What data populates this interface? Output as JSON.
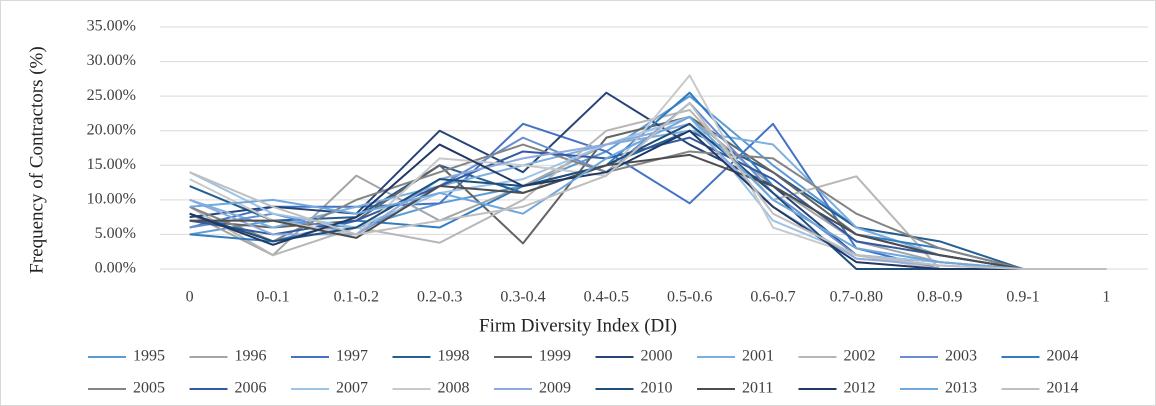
{
  "chart_data": {
    "type": "line",
    "x_label": "Firm Diversity Index (DI)",
    "y_label": "Frequency of Contractors (%)",
    "categories": [
      "0",
      "0-0.1",
      "0.1-0.2",
      "0.2-0.3",
      "0.3-0.4",
      "0.4-0.5",
      "0.5-0.6",
      "0.6-0.7",
      "0.7-0.80",
      "0.8-0.9",
      "0.9-1",
      "1"
    ],
    "ylim": [
      0,
      35
    ],
    "yticks": [
      {
        "value": 0,
        "label": "0.00%"
      },
      {
        "value": 5,
        "label": "5.00%"
      },
      {
        "value": 10,
        "label": "10.00%"
      },
      {
        "value": 15,
        "label": "15.00%"
      },
      {
        "value": 20,
        "label": "20.00%"
      },
      {
        "value": 25,
        "label": "25.00%"
      },
      {
        "value": 30,
        "label": "30.00%"
      },
      {
        "value": 35,
        "label": "35.00%"
      }
    ],
    "grid": true,
    "series": [
      {
        "name": "1995",
        "color": "#5b9bd5",
        "values": [
          5,
          7,
          6,
          9.5,
          12,
          17,
          25,
          15,
          6,
          2,
          0,
          0
        ]
      },
      {
        "name": "1996",
        "color": "#a5a5a5",
        "values": [
          8,
          2,
          13.5,
          7,
          12,
          18,
          22,
          12,
          4,
          1,
          0,
          0
        ]
      },
      {
        "name": "1997",
        "color": "#4472c4",
        "values": [
          6,
          9,
          9,
          9.5,
          21,
          17,
          9.5,
          21,
          3,
          0,
          0,
          0
        ]
      },
      {
        "name": "1998",
        "color": "#255e91",
        "values": [
          12,
          7,
          7.5,
          15,
          11,
          15,
          20,
          14,
          6,
          4,
          0,
          0
        ]
      },
      {
        "name": "1999",
        "color": "#636363",
        "values": [
          7,
          6,
          7,
          15,
          3.7,
          19,
          22,
          14,
          5,
          2,
          0,
          0
        ]
      },
      {
        "name": "2000",
        "color": "#264478",
        "values": [
          7.5,
          9,
          8,
          20,
          14,
          25.5,
          18,
          12,
          2,
          0,
          0,
          0
        ]
      },
      {
        "name": "2001",
        "color": "#7cafdd",
        "values": [
          10,
          6,
          9,
          12,
          15,
          18,
          20,
          18,
          6,
          2,
          0,
          0
        ]
      },
      {
        "name": "2002",
        "color": "#b7b7b7",
        "values": [
          9,
          2,
          6,
          3.8,
          10,
          20,
          23,
          10,
          13.4,
          0,
          0,
          0
        ]
      },
      {
        "name": "2003",
        "color": "#698ed0",
        "values": [
          6,
          8,
          5,
          12,
          19,
          14,
          24,
          11,
          2,
          1,
          0,
          0
        ]
      },
      {
        "name": "2004",
        "color": "#327dc2",
        "values": [
          5,
          4,
          7,
          6,
          12,
          15,
          25.5,
          12,
          5,
          3,
          0,
          0
        ]
      },
      {
        "name": "2005",
        "color": "#848484",
        "values": [
          9,
          4,
          10,
          14,
          18,
          14,
          17,
          16,
          8,
          3,
          0,
          0
        ]
      },
      {
        "name": "2006",
        "color": "#335aa1",
        "values": [
          7,
          5,
          7,
          12,
          17,
          16,
          19,
          13,
          4,
          2,
          0,
          0
        ]
      },
      {
        "name": "2007",
        "color": "#9dc3e6",
        "values": [
          14,
          8,
          6,
          11,
          13,
          18,
          22,
          7,
          2,
          1,
          0,
          0
        ]
      },
      {
        "name": "2008",
        "color": "#c9c9c9",
        "values": [
          13,
          7,
          5,
          16,
          15,
          13.5,
          28,
          6,
          2,
          0,
          0,
          0
        ]
      },
      {
        "name": "2009",
        "color": "#8faadc",
        "values": [
          10,
          5,
          5,
          13,
          16,
          18,
          21,
          9,
          1.5,
          0.5,
          0,
          0
        ]
      },
      {
        "name": "2010",
        "color": "#1f4e79",
        "values": [
          8,
          4,
          6,
          13,
          12,
          15,
          21,
          11,
          0,
          0,
          0,
          0
        ]
      },
      {
        "name": "2011",
        "color": "#4d4d4d",
        "values": [
          7,
          7,
          4.5,
          12,
          11,
          15,
          16.5,
          12,
          5,
          2,
          0,
          0
        ]
      },
      {
        "name": "2012",
        "color": "#203864",
        "values": [
          8,
          3.5,
          7.5,
          18,
          12,
          14,
          20,
          9,
          1,
          0,
          0,
          0
        ]
      },
      {
        "name": "2013",
        "color": "#6fa8dc",
        "values": [
          9,
          10,
          8,
          11,
          8,
          16,
          22,
          10,
          3,
          1,
          0,
          0
        ]
      },
      {
        "name": "2014",
        "color": "#bfbfbf",
        "values": [
          14,
          9,
          5,
          7,
          9,
          13.5,
          24,
          8,
          2,
          0.5,
          0,
          0
        ]
      }
    ]
  }
}
